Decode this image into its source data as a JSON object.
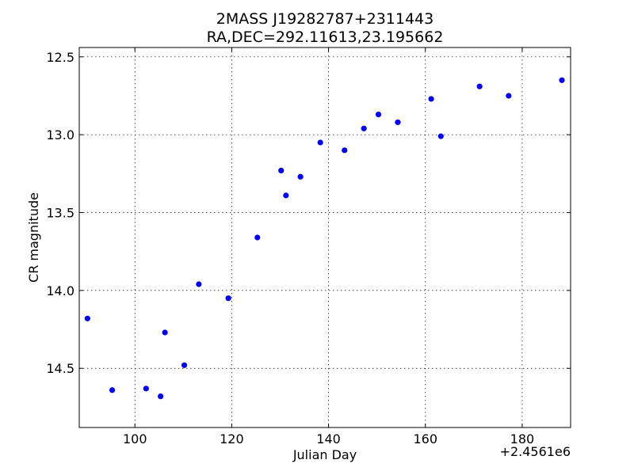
{
  "chart_data": {
    "type": "scatter",
    "title": "2MASS J19282787+2311443",
    "subtitle": "RA,DEC=292.11613,23.195662",
    "xlabel": "Julian Day",
    "ylabel": "CR magnitude",
    "x_offset_label": "+2.4561e6",
    "xlim": [
      88.5,
      190
    ],
    "ylim": [
      14.88,
      12.44
    ],
    "y_inverted": true,
    "xticks": [
      100,
      120,
      140,
      160,
      180
    ],
    "yticks": [
      12.5,
      13.0,
      13.5,
      14.0,
      14.5
    ],
    "xtick_labels": [
      "100",
      "120",
      "140",
      "160",
      "180"
    ],
    "ytick_labels": [
      "12.5",
      "13.0",
      "13.5",
      "14.0",
      "14.5"
    ],
    "grid": true,
    "legend": false,
    "marker_color": "#0000ff",
    "points": [
      {
        "x": 90.2,
        "y": 14.18
      },
      {
        "x": 95.3,
        "y": 14.64
      },
      {
        "x": 102.3,
        "y": 14.63
      },
      {
        "x": 105.3,
        "y": 14.68
      },
      {
        "x": 106.2,
        "y": 14.27
      },
      {
        "x": 110.2,
        "y": 14.48
      },
      {
        "x": 113.2,
        "y": 13.96
      },
      {
        "x": 119.3,
        "y": 14.05
      },
      {
        "x": 125.3,
        "y": 13.66
      },
      {
        "x": 130.2,
        "y": 13.23
      },
      {
        "x": 131.2,
        "y": 13.39
      },
      {
        "x": 134.2,
        "y": 13.27
      },
      {
        "x": 138.3,
        "y": 13.05
      },
      {
        "x": 143.3,
        "y": 13.1
      },
      {
        "x": 147.3,
        "y": 12.96
      },
      {
        "x": 150.3,
        "y": 12.87
      },
      {
        "x": 154.3,
        "y": 12.92
      },
      {
        "x": 161.2,
        "y": 12.77
      },
      {
        "x": 163.2,
        "y": 13.01
      },
      {
        "x": 171.2,
        "y": 12.69
      },
      {
        "x": 177.2,
        "y": 12.75
      },
      {
        "x": 188.2,
        "y": 12.65
      }
    ]
  }
}
